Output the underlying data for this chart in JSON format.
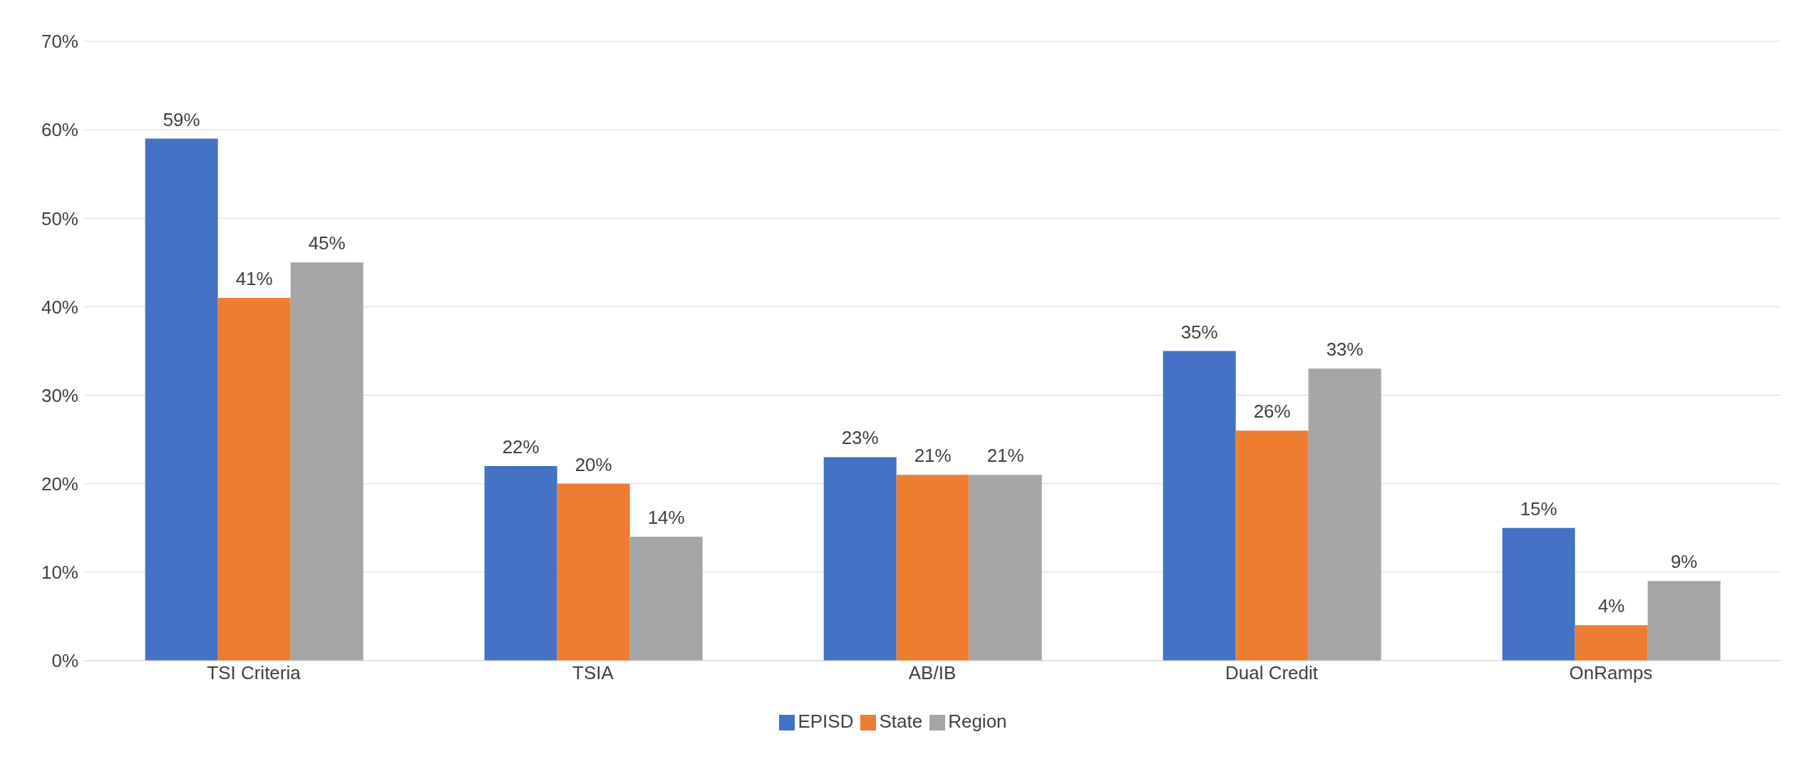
{
  "chart_data": {
    "type": "bar",
    "categories": [
      "TSI Criteria",
      "TSIA",
      "AB/IB",
      "Dual Credit",
      "OnRamps"
    ],
    "series": [
      {
        "name": "EPISD",
        "color": "#4472c4",
        "values": [
          59,
          22,
          23,
          35,
          15
        ],
        "value_labels": [
          "59%",
          "22%",
          "23%",
          "35%",
          "15%"
        ]
      },
      {
        "name": "State",
        "color": "#ed7d31",
        "values": [
          41,
          20,
          21,
          26,
          4
        ],
        "value_labels": [
          "41%",
          "20%",
          "21%",
          "26%",
          "4%"
        ]
      },
      {
        "name": "Region",
        "color": "#a5a5a5",
        "values": [
          45,
          14,
          21,
          33,
          9
        ],
        "value_labels": [
          "45%",
          "14%",
          "21%",
          "33%",
          "9%"
        ]
      }
    ],
    "ylim": [
      0,
      70
    ],
    "yticks": [
      {
        "value": 0,
        "label": "0%"
      },
      {
        "value": 10,
        "label": "10%"
      },
      {
        "value": 20,
        "label": "20%"
      },
      {
        "value": 30,
        "label": "30%"
      },
      {
        "value": 40,
        "label": "40%"
      },
      {
        "value": 50,
        "label": "50%"
      },
      {
        "value": 60,
        "label": "60%"
      },
      {
        "value": 70,
        "label": "70%"
      }
    ],
    "grid": "y",
    "legend": "bottom"
  }
}
